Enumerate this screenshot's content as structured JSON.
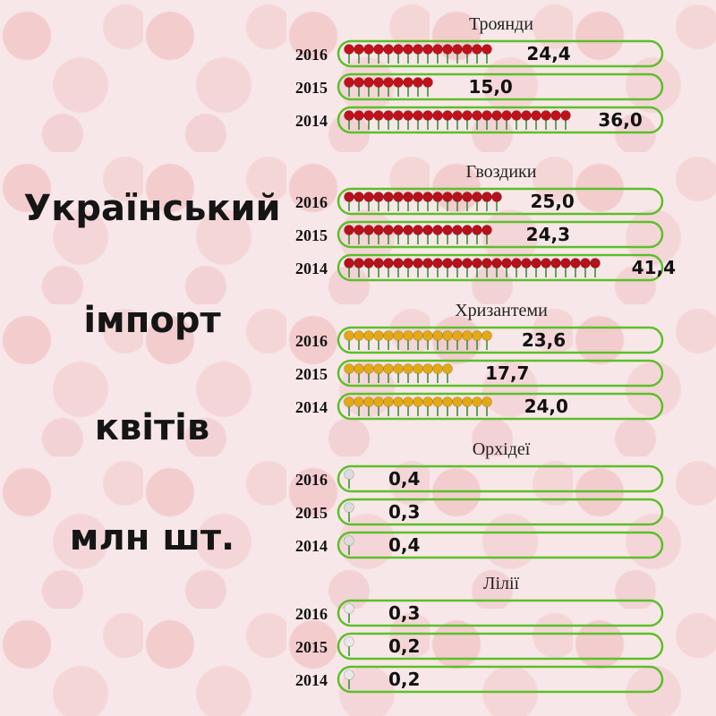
{
  "title_lines": [
    "Український",
    "імпорт",
    "квітів",
    "млн шт."
  ],
  "colors": {
    "outline": "#5cbf2a",
    "rose": "#c0121a",
    "carnation": "#b5121b",
    "chrysanthemum": "#e3a915",
    "orchid": "#dcdcdc",
    "lily": "#e8e8e8",
    "stem": "#2e8b2e"
  },
  "chart_data": {
    "type": "bar",
    "orientation": "horizontal",
    "unit_label": "млн шт.",
    "groups": [
      {
        "name": "Троянди",
        "icon": "rose-icon",
        "color_key": "rose",
        "rows": [
          {
            "year": "2016",
            "value": 24.4,
            "label": "24,4"
          },
          {
            "year": "2015",
            "value": 15.0,
            "label": "15,0"
          },
          {
            "year": "2014",
            "value": 36.0,
            "label": "36,0"
          }
        ]
      },
      {
        "name": "Гвоздики",
        "icon": "carnation-icon",
        "color_key": "carnation",
        "rows": [
          {
            "year": "2016",
            "value": 25.0,
            "label": "25,0"
          },
          {
            "year": "2015",
            "value": 24.3,
            "label": "24,3"
          },
          {
            "year": "2014",
            "value": 41.4,
            "label": "41,4"
          }
        ]
      },
      {
        "name": "Хризантеми",
        "icon": "chrysanthemum-icon",
        "color_key": "chrysanthemum",
        "rows": [
          {
            "year": "2016",
            "value": 23.6,
            "label": "23,6"
          },
          {
            "year": "2015",
            "value": 17.7,
            "label": "17,7"
          },
          {
            "year": "2014",
            "value": 24.0,
            "label": "24,0"
          }
        ]
      },
      {
        "name": "Орхідеї",
        "icon": "orchid-icon",
        "color_key": "orchid",
        "rows": [
          {
            "year": "2016",
            "value": 0.4,
            "label": "0,4"
          },
          {
            "year": "2015",
            "value": 0.3,
            "label": "0,3"
          },
          {
            "year": "2014",
            "value": 0.4,
            "label": "0,4"
          }
        ]
      },
      {
        "name": "Лілії",
        "icon": "lily-icon",
        "color_key": "lily",
        "rows": [
          {
            "year": "2016",
            "value": 0.3,
            "label": "0,3"
          },
          {
            "year": "2015",
            "value": 0.2,
            "label": "0,2"
          },
          {
            "year": "2014",
            "value": 0.2,
            "label": "0,2"
          }
        ]
      }
    ]
  }
}
